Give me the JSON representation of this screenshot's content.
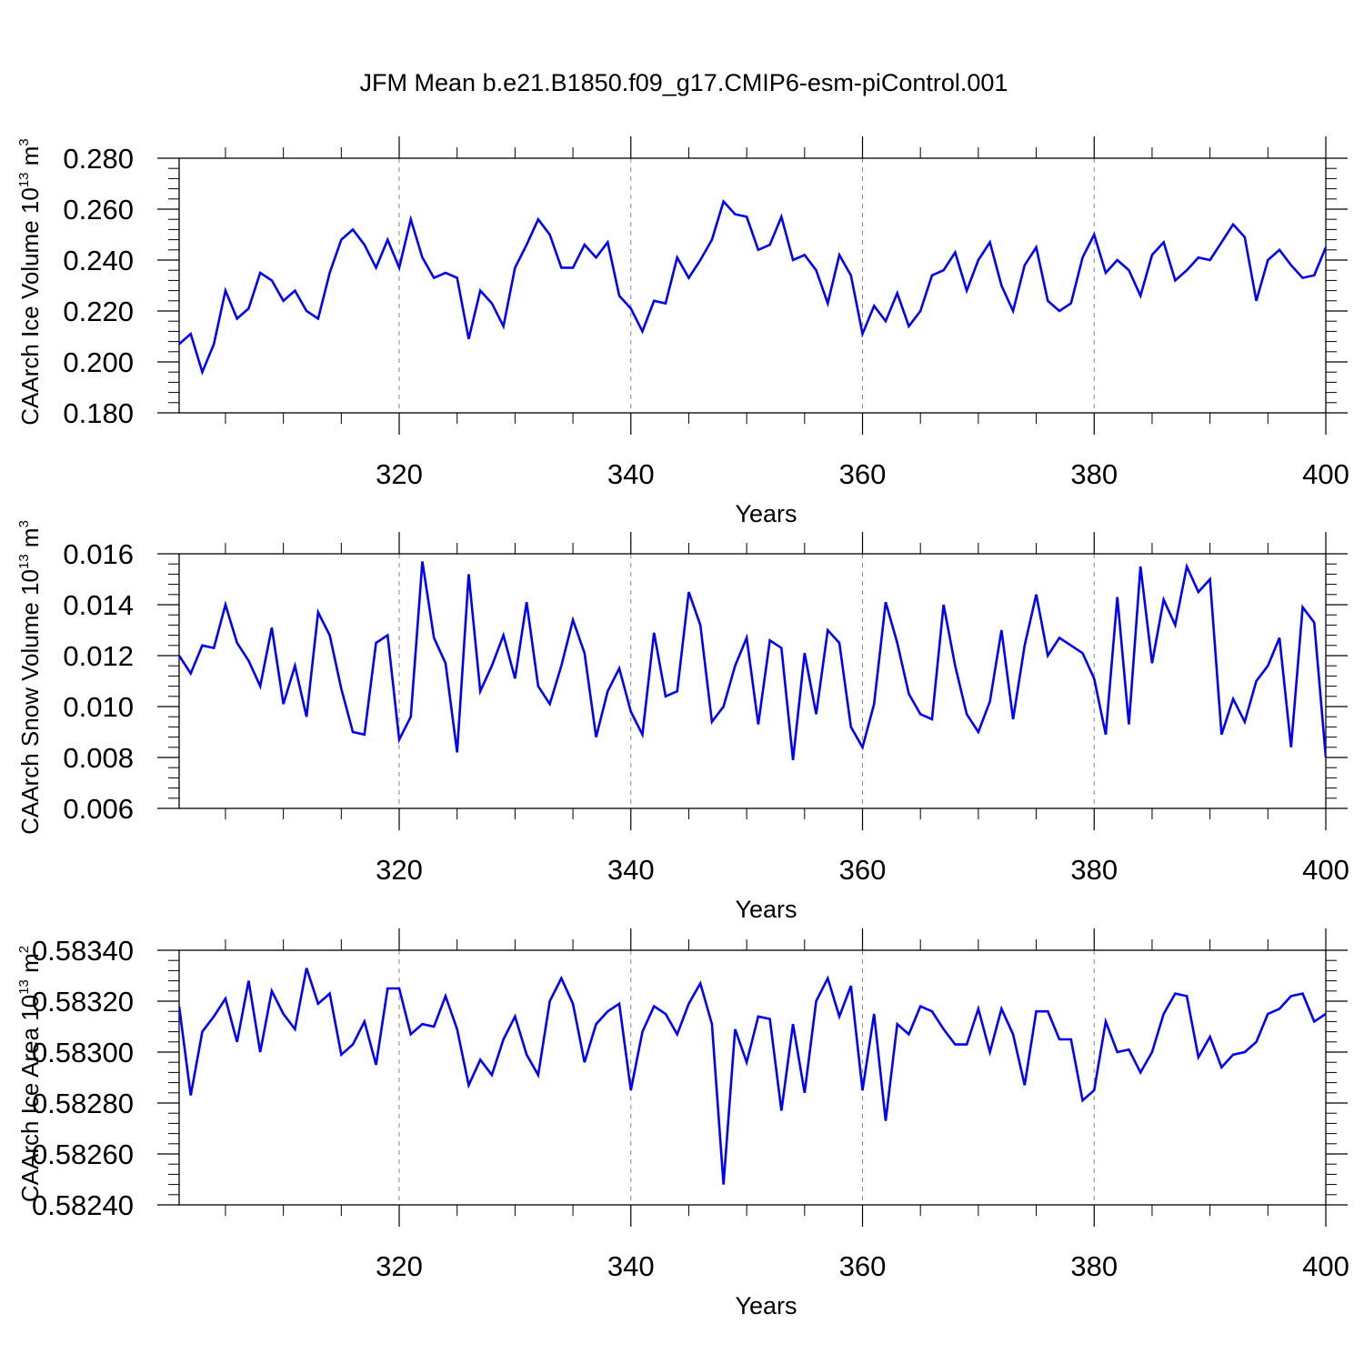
{
  "title": "JFM Mean b.e21.B1850.f09_g17.CMIP6-esm-piControl.001",
  "chart_data": [
    {
      "type": "line",
      "ylabel": "CAArch Ice Volume 10",
      "ylabel_exp": "13",
      "ylabel_unit": "m",
      "ylabel_unit_exp": "3",
      "xlabel": "Years",
      "xlim": [
        301,
        400
      ],
      "ylim": [
        0.18,
        0.28
      ],
      "yticks": [
        "0.180",
        "0.200",
        "0.220",
        "0.240",
        "0.260",
        "0.280"
      ],
      "xticks": [
        "320",
        "340",
        "360",
        "380",
        "400"
      ],
      "line_color": "#0000ff",
      "x": [
        301,
        302,
        303,
        304,
        305,
        306,
        307,
        308,
        309,
        310,
        311,
        312,
        313,
        314,
        315,
        316,
        317,
        318,
        319,
        320,
        321,
        322,
        323,
        324,
        325,
        326,
        327,
        328,
        329,
        330,
        331,
        332,
        333,
        334,
        335,
        336,
        337,
        338,
        339,
        340,
        341,
        342,
        343,
        344,
        345,
        346,
        347,
        348,
        349,
        350,
        351,
        352,
        353,
        354,
        355,
        356,
        357,
        358,
        359,
        360,
        361,
        362,
        363,
        364,
        365,
        366,
        367,
        368,
        369,
        370,
        371,
        372,
        373,
        374,
        375,
        376,
        377,
        378,
        379,
        380,
        381,
        382,
        383,
        384,
        385,
        386,
        387,
        388,
        389,
        390,
        391,
        392,
        393,
        394,
        395,
        396,
        397,
        398,
        399,
        400
      ],
      "y": [
        0.207,
        0.211,
        0.196,
        0.207,
        0.228,
        0.217,
        0.221,
        0.235,
        0.232,
        0.224,
        0.228,
        0.22,
        0.217,
        0.235,
        0.248,
        0.252,
        0.246,
        0.237,
        0.248,
        0.237,
        0.256,
        0.241,
        0.233,
        0.235,
        0.233,
        0.209,
        0.228,
        0.223,
        0.214,
        0.237,
        0.246,
        0.256,
        0.25,
        0.237,
        0.237,
        0.246,
        0.241,
        0.247,
        0.226,
        0.221,
        0.212,
        0.224,
        0.223,
        0.241,
        0.233,
        0.24,
        0.248,
        0.263,
        0.258,
        0.257,
        0.244,
        0.246,
        0.257,
        0.24,
        0.242,
        0.236,
        0.223,
        0.242,
        0.234,
        0.211,
        0.222,
        0.216,
        0.227,
        0.214,
        0.22,
        0.234,
        0.236,
        0.243,
        0.228,
        0.24,
        0.247,
        0.23,
        0.22,
        0.238,
        0.245,
        0.224,
        0.22,
        0.223,
        0.241,
        0.25,
        0.235,
        0.24,
        0.236,
        0.226,
        0.242,
        0.247,
        0.232,
        0.236,
        0.241,
        0.24,
        0.247,
        0.254,
        0.249,
        0.224,
        0.24,
        0.244,
        0.238,
        0.233,
        0.234,
        0.245
      ]
    },
    {
      "type": "line",
      "ylabel": "CAArch Snow Volume 10",
      "ylabel_exp": "13",
      "ylabel_unit": "m",
      "ylabel_unit_exp": "3",
      "xlabel": "Years",
      "xlim": [
        301,
        400
      ],
      "ylim": [
        0.006,
        0.016
      ],
      "yticks": [
        "0.006",
        "0.008",
        "0.010",
        "0.012",
        "0.014",
        "0.016"
      ],
      "xticks": [
        "320",
        "340",
        "360",
        "380",
        "400"
      ],
      "line_color": "#0000ff",
      "x": [
        301,
        302,
        303,
        304,
        305,
        306,
        307,
        308,
        309,
        310,
        311,
        312,
        313,
        314,
        315,
        316,
        317,
        318,
        319,
        320,
        321,
        322,
        323,
        324,
        325,
        326,
        327,
        328,
        329,
        330,
        331,
        332,
        333,
        334,
        335,
        336,
        337,
        338,
        339,
        340,
        341,
        342,
        343,
        344,
        345,
        346,
        347,
        348,
        349,
        350,
        351,
        352,
        353,
        354,
        355,
        356,
        357,
        358,
        359,
        360,
        361,
        362,
        363,
        364,
        365,
        366,
        367,
        368,
        369,
        370,
        371,
        372,
        373,
        374,
        375,
        376,
        377,
        378,
        379,
        380,
        381,
        382,
        383,
        384,
        385,
        386,
        387,
        388,
        389,
        390,
        391,
        392,
        393,
        394,
        395,
        396,
        397,
        398,
        399,
        400
      ],
      "y": [
        0.012,
        0.0113,
        0.0124,
        0.0123,
        0.014,
        0.0125,
        0.0118,
        0.0108,
        0.0131,
        0.0101,
        0.0116,
        0.0096,
        0.0137,
        0.0128,
        0.0107,
        0.009,
        0.0089,
        0.0125,
        0.0128,
        0.0087,
        0.0096,
        0.0157,
        0.0127,
        0.0117,
        0.0082,
        0.0152,
        0.0106,
        0.0116,
        0.0128,
        0.0111,
        0.0141,
        0.0108,
        0.0101,
        0.0116,
        0.0134,
        0.0121,
        0.0088,
        0.0106,
        0.0115,
        0.0098,
        0.0089,
        0.0129,
        0.0104,
        0.0106,
        0.0145,
        0.0132,
        0.0094,
        0.01,
        0.0116,
        0.0127,
        0.0093,
        0.0126,
        0.0123,
        0.0079,
        0.0121,
        0.0097,
        0.013,
        0.0125,
        0.0092,
        0.0084,
        0.0101,
        0.0141,
        0.0125,
        0.0105,
        0.0097,
        0.0095,
        0.014,
        0.0116,
        0.0097,
        0.009,
        0.0102,
        0.013,
        0.0095,
        0.0124,
        0.0144,
        0.012,
        0.0127,
        0.0124,
        0.0121,
        0.0111,
        0.0089,
        0.0143,
        0.0093,
        0.0155,
        0.0117,
        0.0142,
        0.0132,
        0.0155,
        0.0145,
        0.015,
        0.0089,
        0.0103,
        0.0094,
        0.011,
        0.0116,
        0.0127,
        0.0084,
        0.0139,
        0.0133,
        0.008
      ]
    },
    {
      "type": "line",
      "ylabel": "CAArch Ice Area 10",
      "ylabel_exp": "13",
      "ylabel_unit": "m",
      "ylabel_unit_exp": "2",
      "xlabel": "Years",
      "xlim": [
        301,
        400
      ],
      "ylim": [
        0.5824,
        0.5834
      ],
      "yticks": [
        "0.58240",
        "0.58260",
        "0.58280",
        "0.58300",
        "0.58320",
        "0.58340"
      ],
      "xticks": [
        "320",
        "340",
        "360",
        "380",
        "400"
      ],
      "line_color": "#0000ff",
      "x": [
        301,
        302,
        303,
        304,
        305,
        306,
        307,
        308,
        309,
        310,
        311,
        312,
        313,
        314,
        315,
        316,
        317,
        318,
        319,
        320,
        321,
        322,
        323,
        324,
        325,
        326,
        327,
        328,
        329,
        330,
        331,
        332,
        333,
        334,
        335,
        336,
        337,
        338,
        339,
        340,
        341,
        342,
        343,
        344,
        345,
        346,
        347,
        348,
        349,
        350,
        351,
        352,
        353,
        354,
        355,
        356,
        357,
        358,
        359,
        360,
        361,
        362,
        363,
        364,
        365,
        366,
        367,
        368,
        369,
        370,
        371,
        372,
        373,
        374,
        375,
        376,
        377,
        378,
        379,
        380,
        381,
        382,
        383,
        384,
        385,
        386,
        387,
        388,
        389,
        390,
        391,
        392,
        393,
        394,
        395,
        396,
        397,
        398,
        399,
        400
      ],
      "y": [
        0.58318,
        0.58283,
        0.58308,
        0.58314,
        0.58321,
        0.58304,
        0.58328,
        0.583,
        0.58324,
        0.58315,
        0.58309,
        0.58333,
        0.58319,
        0.58323,
        0.58299,
        0.58303,
        0.58312,
        0.58295,
        0.58325,
        0.58325,
        0.58307,
        0.58311,
        0.5831,
        0.58322,
        0.58309,
        0.58287,
        0.58297,
        0.58291,
        0.58305,
        0.58314,
        0.58299,
        0.58291,
        0.5832,
        0.58329,
        0.58319,
        0.58296,
        0.58311,
        0.58316,
        0.58319,
        0.58285,
        0.58308,
        0.58318,
        0.58315,
        0.58307,
        0.58319,
        0.58327,
        0.58311,
        0.58248,
        0.58309,
        0.58296,
        0.58314,
        0.58313,
        0.58277,
        0.58311,
        0.58284,
        0.5832,
        0.58329,
        0.58314,
        0.58326,
        0.58285,
        0.58315,
        0.58273,
        0.58311,
        0.58307,
        0.58318,
        0.58316,
        0.58309,
        0.58303,
        0.58303,
        0.58317,
        0.583,
        0.58317,
        0.58307,
        0.58287,
        0.58316,
        0.58316,
        0.58305,
        0.58305,
        0.58281,
        0.58285,
        0.58312,
        0.583,
        0.58301,
        0.58292,
        0.583,
        0.58315,
        0.58323,
        0.58322,
        0.58298,
        0.58306,
        0.58294,
        0.58299,
        0.583,
        0.58304,
        0.58315,
        0.58317,
        0.58322,
        0.58323,
        0.58312,
        0.58315
      ]
    }
  ]
}
